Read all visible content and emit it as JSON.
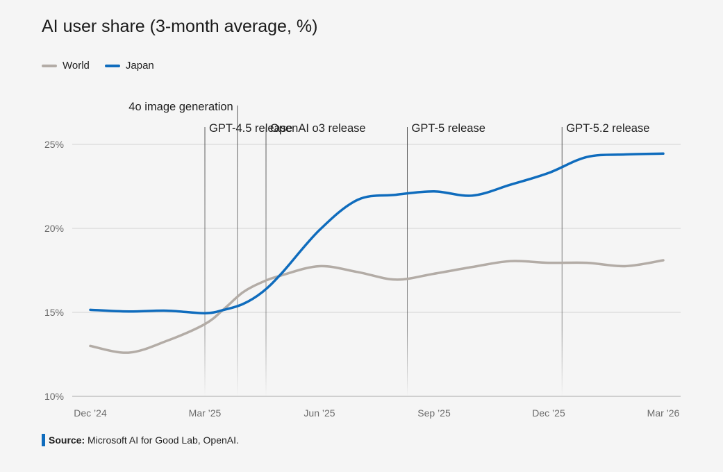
{
  "title": "AI user share (3-month average, %)",
  "source": {
    "label": "Source:",
    "text": "Microsoft AI for Good Lab, OpenAI."
  },
  "chart_data": {
    "type": "line",
    "title": "AI user share (3-month average, %)",
    "ylim": [
      10,
      27
    ],
    "yticks": [
      10,
      15,
      20,
      25
    ],
    "ytick_labels": [
      "10%",
      "15%",
      "20%",
      "25%"
    ],
    "x_ticks": [
      {
        "x": 0,
        "label": "Dec ’24"
      },
      {
        "x": 3,
        "label": "Mar ’25"
      },
      {
        "x": 6,
        "label": "Jun ’25"
      },
      {
        "x": 9,
        "label": "Sep ’25"
      },
      {
        "x": 12,
        "label": "Dec ’25"
      },
      {
        "x": 15,
        "label": "Mar ’26"
      }
    ],
    "grid": true,
    "legend": "top-left",
    "series": [
      {
        "name": "World",
        "color": "#b3aca6",
        "x": [
          0,
          1,
          2,
          3,
          3.5,
          4,
          4.5,
          5,
          6,
          7,
          8,
          9,
          10,
          11,
          12,
          13,
          14,
          15
        ],
        "values": [
          13.0,
          12.6,
          13.3,
          14.3,
          15.2,
          16.2,
          16.8,
          17.2,
          17.75,
          17.4,
          16.95,
          17.3,
          17.7,
          18.05,
          17.95,
          17.95,
          17.75,
          18.1
        ]
      },
      {
        "name": "Japan",
        "color": "#0f6cbd",
        "x": [
          0,
          1,
          2,
          3,
          3.5,
          4,
          4.5,
          5,
          6,
          7,
          8,
          9,
          10,
          11,
          12,
          13,
          14,
          15
        ],
        "values": [
          15.15,
          15.05,
          15.1,
          14.95,
          15.15,
          15.5,
          16.2,
          17.3,
          19.9,
          21.7,
          22.0,
          22.2,
          21.95,
          22.6,
          23.3,
          24.25,
          24.4,
          24.45
        ]
      }
    ],
    "annotations": [
      {
        "x": 3.0,
        "label": "GPT-4.5 release",
        "row": 1
      },
      {
        "x": 3.85,
        "label": "4o image generation",
        "row": 0
      },
      {
        "x": 4.6,
        "label": "OpenAI o3 release",
        "row": 1
      },
      {
        "x": 8.3,
        "label": "GPT-5 release",
        "row": 1
      },
      {
        "x": 12.35,
        "label": "GPT-5.2 release",
        "row": 1
      }
    ]
  }
}
